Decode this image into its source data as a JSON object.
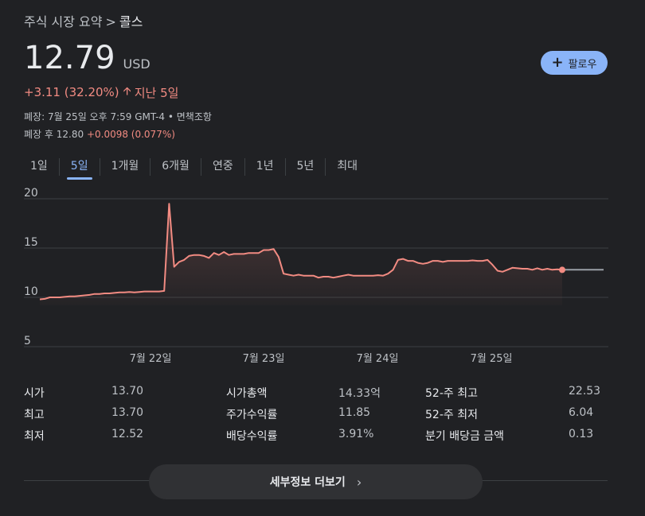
{
  "breadcrumb": {
    "parent": "주식 시장 요약",
    "separator": ">",
    "current": "콜스"
  },
  "quote": {
    "price": "12.79",
    "currency": "USD"
  },
  "follow_button": {
    "label": "팔로우",
    "icon": "plus-icon"
  },
  "change": {
    "amount": "+3.11 (32.20%)",
    "arrow": "up-arrow-icon",
    "period": "지난 5일"
  },
  "close_info": "폐장: 7월 25일 오후 7:59 GMT-4 • 면책조항",
  "after_hours": {
    "label": "폐장 후 12.80",
    "change": "+0.0098 (0.077%)"
  },
  "tabs": [
    {
      "label": "1일",
      "active": false
    },
    {
      "label": "5일",
      "active": true
    },
    {
      "label": "1개월",
      "active": false
    },
    {
      "label": "6개월",
      "active": false
    },
    {
      "label": "연중",
      "active": false
    },
    {
      "label": "1년",
      "active": false
    },
    {
      "label": "5년",
      "active": false
    },
    {
      "label": "최대",
      "active": false
    }
  ],
  "chart_data": {
    "type": "area",
    "series": [
      {
        "values": [
          9.8,
          9.85,
          10.0,
          10.0,
          10.0,
          10.05,
          10.1,
          10.1,
          10.15,
          10.2,
          10.25,
          10.35,
          10.35,
          10.4,
          10.4,
          10.45,
          10.5,
          10.5,
          10.55,
          10.5,
          10.55,
          10.6,
          10.6,
          10.6,
          10.6,
          10.65,
          19.5,
          13.1,
          13.6,
          13.8,
          14.2,
          14.3,
          14.3,
          14.2,
          14.0,
          14.5,
          14.3,
          14.6,
          14.3,
          14.4,
          14.4,
          14.4,
          14.5,
          14.5,
          14.5,
          14.8,
          14.8,
          14.9,
          14.1,
          12.4,
          12.3,
          12.2,
          12.3,
          12.2,
          12.2,
          12.2,
          12.0,
          12.1,
          12.1,
          12.0,
          12.1,
          12.2,
          12.3,
          12.2,
          12.2,
          12.2,
          12.2,
          12.2,
          12.25,
          12.2,
          12.4,
          12.8,
          13.8,
          13.9,
          13.7,
          13.7,
          13.5,
          13.4,
          13.5,
          13.7,
          13.7,
          13.6,
          13.7,
          13.7,
          13.7,
          13.7,
          13.7,
          13.75,
          13.7,
          13.7,
          13.8,
          13.3,
          12.7,
          12.6,
          12.8,
          13.0,
          12.95,
          12.9,
          12.9,
          12.8,
          12.95,
          12.8,
          12.9,
          12.8,
          12.85,
          12.79
        ],
        "after_hours_values": [
          12.79,
          12.8,
          12.8,
          12.8,
          12.8,
          12.8,
          12.8,
          12.8,
          12.8,
          12.8
        ]
      }
    ],
    "x_tick_labels": [
      "7월 22일",
      "7월 23일",
      "7월 24일",
      "7월 25일"
    ],
    "y_tick_labels": [
      "20",
      "15",
      "10",
      "5"
    ],
    "ylim": [
      5,
      20
    ],
    "grid": true,
    "colors": {
      "line": "#f28b82",
      "after_hours": "#9aa0a6",
      "grid": "#3c4043"
    }
  },
  "stats": [
    {
      "label": "시가",
      "value": "13.70"
    },
    {
      "label": "최고",
      "value": "13.70"
    },
    {
      "label": "최저",
      "value": "12.52"
    },
    {
      "label": "시가총액",
      "value": "14.33억"
    },
    {
      "label": "주가수익률",
      "value": "11.85"
    },
    {
      "label": "배당수익률",
      "value": "3.91%"
    },
    {
      "label": "52-주 최고",
      "value": "22.53"
    },
    {
      "label": "52-주 최저",
      "value": "6.04"
    },
    {
      "label": "분기 배당금 금액",
      "value": "0.13"
    }
  ],
  "more_button": {
    "label": "세부정보 더보기",
    "icon": "chevron-right-icon"
  }
}
